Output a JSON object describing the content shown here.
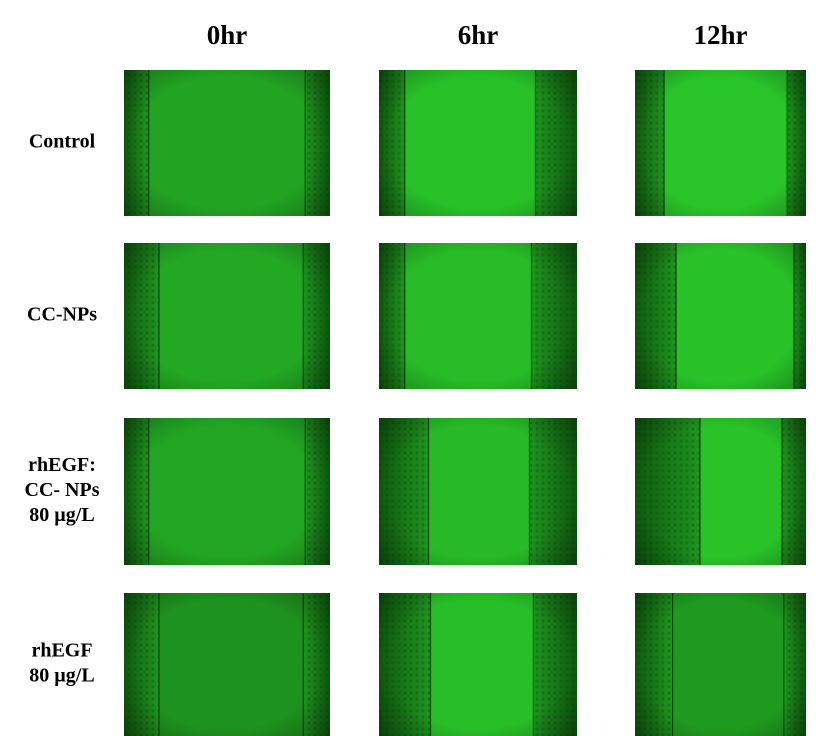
{
  "columns": [
    "0hr",
    "6hr",
    "12hr"
  ],
  "rows": [
    [
      "Control"
    ],
    [
      "CC-NPs"
    ],
    [
      "rhEGF:",
      "CC- NPs",
      "80 µg/L"
    ],
    [
      "rhEGF",
      "80 µg/L"
    ]
  ]
}
